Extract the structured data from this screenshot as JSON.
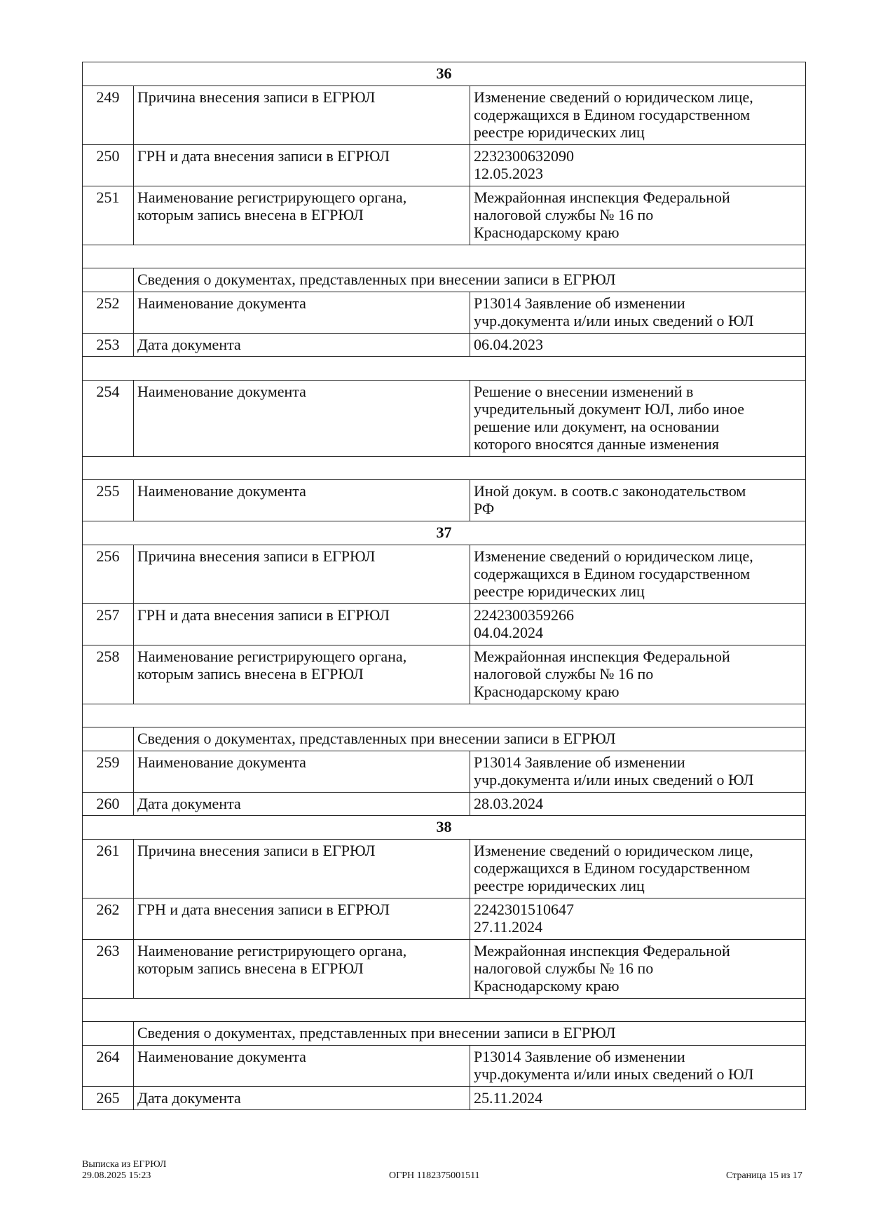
{
  "rows": [
    {
      "type": "section",
      "label": "36"
    },
    {
      "type": "row",
      "num": "249",
      "label": "Причина внесения записи в ЕГРЮЛ",
      "value": [
        "Изменение сведений о юридическом лице,",
        "содержащихся в Едином государственном",
        "реестре юридических лиц"
      ]
    },
    {
      "type": "row",
      "num": "250",
      "label": "ГРН и дата внесения записи в ЕГРЮЛ",
      "value": [
        "2232300632090",
        "12.05.2023"
      ]
    },
    {
      "type": "row",
      "num": "251",
      "label": "Наименование регистрирующего органа, которым запись внесена в ЕГРЮЛ",
      "value": [
        "Межрайонная инспекция Федеральной",
        "налоговой службы № 16 по",
        "Краснодарскому краю"
      ]
    },
    {
      "type": "blank"
    },
    {
      "type": "subheader",
      "label": "Сведения о документах, представленных при внесении записи в ЕГРЮЛ"
    },
    {
      "type": "row",
      "num": "252",
      "label": "Наименование документа",
      "value": [
        "Р13014 Заявление об изменении",
        "учр.документа и/или иных сведений о ЮЛ"
      ]
    },
    {
      "type": "row",
      "num": "253",
      "label": "Дата документа",
      "value": [
        "06.04.2023"
      ]
    },
    {
      "type": "blank"
    },
    {
      "type": "row",
      "num": "254",
      "label": "Наименование документа",
      "value": [
        "Решение о внесении изменений в",
        "учредительный документ ЮЛ, либо иное",
        "решение или документ, на основании",
        "которого вносятся данные изменения"
      ]
    },
    {
      "type": "blank"
    },
    {
      "type": "row",
      "num": "255",
      "label": "Наименование документа",
      "value": [
        "Иной докум. в соотв.с законодательством",
        "РФ"
      ]
    },
    {
      "type": "section",
      "label": "37"
    },
    {
      "type": "row",
      "num": "256",
      "label": "Причина внесения записи в ЕГРЮЛ",
      "value": [
        "Изменение сведений о юридическом лице,",
        "содержащихся в Едином государственном",
        "реестре юридических лиц"
      ]
    },
    {
      "type": "row",
      "num": "257",
      "label": "ГРН и дата внесения записи в ЕГРЮЛ",
      "value": [
        "2242300359266",
        "04.04.2024"
      ]
    },
    {
      "type": "row",
      "num": "258",
      "label": "Наименование регистрирующего органа, которым запись внесена в ЕГРЮЛ",
      "value": [
        "Межрайонная инспекция Федеральной",
        "налоговой службы № 16 по",
        "Краснодарскому краю"
      ]
    },
    {
      "type": "blank"
    },
    {
      "type": "subheader",
      "label": "Сведения о документах, представленных при внесении записи в ЕГРЮЛ"
    },
    {
      "type": "row",
      "num": "259",
      "label": "Наименование документа",
      "value": [
        "Р13014 Заявление об изменении",
        "учр.документа и/или иных сведений о ЮЛ"
      ]
    },
    {
      "type": "row",
      "num": "260",
      "label": "Дата документа",
      "value": [
        "28.03.2024"
      ]
    },
    {
      "type": "section",
      "label": "38"
    },
    {
      "type": "row",
      "num": "261",
      "label": "Причина внесения записи в ЕГРЮЛ",
      "value": [
        "Изменение сведений о юридическом лице,",
        "содержащихся в Едином государственном",
        "реестре юридических лиц"
      ]
    },
    {
      "type": "row",
      "num": "262",
      "label": "ГРН и дата внесения записи в ЕГРЮЛ",
      "value": [
        "2242301510647",
        "27.11.2024"
      ]
    },
    {
      "type": "row",
      "num": "263",
      "label": "Наименование регистрирующего органа, которым запись внесена в ЕГРЮЛ",
      "value": [
        "Межрайонная инспекция Федеральной",
        "налоговой службы № 16 по",
        "Краснодарскому краю"
      ]
    },
    {
      "type": "blank"
    },
    {
      "type": "subheader",
      "label": "Сведения о документах, представленных при внесении записи в ЕГРЮЛ"
    },
    {
      "type": "row",
      "num": "264",
      "label": "Наименование документа",
      "value": [
        "Р13014 Заявление об изменении",
        "учр.документа и/или иных сведений о ЮЛ"
      ]
    },
    {
      "type": "row",
      "num": "265",
      "label": "Дата документа",
      "value": [
        "25.11.2024"
      ]
    }
  ],
  "footer": {
    "doc_title": "Выписка из ЕГРЮЛ",
    "datetime": "29.08.2025 15:23",
    "ogrn": "ОГРН 1182375001511",
    "page": "Страница 15 из 17"
  }
}
